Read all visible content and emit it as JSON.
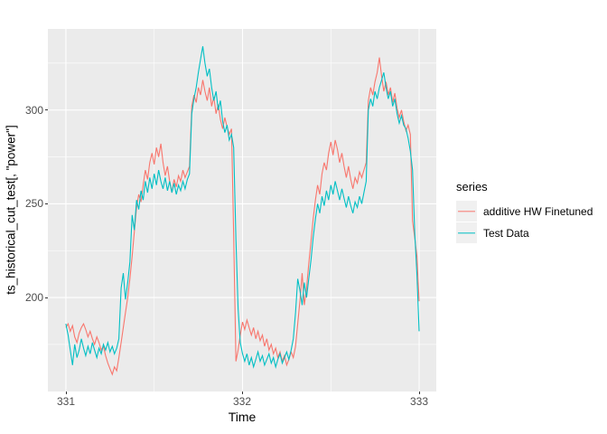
{
  "chart_data": {
    "type": "line",
    "title": "",
    "xlabel": "Time",
    "ylabel": "ts_historical_cut_test[, \"power\"]",
    "x_ticks": [
      331,
      332,
      333
    ],
    "y_ticks": [
      200,
      250,
      300
    ],
    "x_domain": [
      330.898,
      333.097
    ],
    "y_domain": [
      149.9,
      343.25
    ],
    "grid": {
      "major_x": [
        331,
        332,
        333
      ],
      "minor_x": [
        331.5,
        332.5
      ],
      "major_y": [
        200,
        250,
        300
      ],
      "minor_y": [
        175,
        225,
        275,
        325
      ],
      "major_color": "#FFFFFF",
      "minor_color": "#FFFFFF"
    },
    "panel_background": "#EBEBEB",
    "legend": {
      "title": "series",
      "position": "right"
    },
    "series": [
      {
        "name": "additive HW Finetuned",
        "color": "#F8766D",
        "x_start": 331.0,
        "x_step": 0.0125,
        "values": [
          184,
          186,
          182,
          185,
          179,
          176,
          181,
          184,
          186,
          183,
          179,
          182,
          178,
          175,
          179,
          176,
          172,
          174,
          169,
          165,
          162,
          159,
          163,
          161,
          168,
          176,
          184,
          192,
          200,
          210,
          222,
          235,
          248,
          255,
          251,
          260,
          268,
          263,
          272,
          277,
          271,
          280,
          275,
          282,
          272,
          265,
          270,
          262,
          256,
          263,
          259,
          265,
          262,
          268,
          264,
          267,
          270,
          302,
          308,
          304,
          312,
          308,
          316,
          310,
          305,
          312,
          302,
          307,
          298,
          303,
          295,
          290,
          296,
          291,
          287,
          290,
          233,
          166,
          172,
          180,
          187,
          183,
          188,
          184,
          180,
          184,
          178,
          182,
          177,
          180,
          174,
          178,
          172,
          175,
          170,
          173,
          168,
          171,
          166,
          169,
          164,
          167,
          171,
          168,
          174,
          186,
          198,
          213,
          196,
          205,
          218,
          230,
          242,
          252,
          260,
          255,
          266,
          272,
          268,
          277,
          283,
          276,
          284,
          279,
          272,
          277,
          270,
          264,
          270,
          263,
          258,
          264,
          261,
          267,
          264,
          268,
          272,
          305,
          312,
          308,
          315,
          320,
          328,
          318,
          310,
          315,
          308,
          312,
          304,
          309,
          301,
          296,
          300,
          294,
          289,
          292,
          287,
          241,
          232,
          222,
          198
        ]
      },
      {
        "name": "Test Data",
        "color": "#00BFC4",
        "x_start": 331.0,
        "x_step": 0.0125,
        "values": [
          186,
          180,
          172,
          164,
          175,
          168,
          172,
          178,
          173,
          169,
          174,
          170,
          176,
          172,
          168,
          173,
          170,
          175,
          172,
          176,
          171,
          174,
          170,
          173,
          178,
          205,
          213,
          199,
          208,
          219,
          244,
          236,
          252,
          247,
          257,
          252,
          262,
          256,
          264,
          258,
          266,
          260,
          268,
          262,
          258,
          264,
          257,
          262,
          256,
          261,
          255,
          260,
          257,
          262,
          258,
          263,
          266,
          298,
          306,
          312,
          320,
          327,
          334,
          325,
          318,
          322,
          312,
          305,
          310,
          300,
          305,
          294,
          288,
          292,
          284,
          287,
          280,
          231,
          194,
          176,
          170,
          166,
          170,
          164,
          168,
          163,
          167,
          171,
          166,
          169,
          164,
          167,
          170,
          165,
          168,
          163,
          167,
          170,
          165,
          168,
          171,
          167,
          172,
          178,
          192,
          210,
          204,
          196,
          208,
          200,
          210,
          220,
          232,
          242,
          250,
          245,
          254,
          249,
          257,
          252,
          260,
          255,
          262,
          257,
          252,
          258,
          253,
          248,
          254,
          249,
          245,
          251,
          248,
          254,
          250,
          256,
          262,
          300,
          306,
          302,
          310,
          306,
          312,
          316,
          320,
          312,
          306,
          310,
          302,
          306,
          298,
          293,
          297,
          292,
          290,
          285,
          278,
          268,
          235,
          212,
          182
        ]
      }
    ]
  }
}
